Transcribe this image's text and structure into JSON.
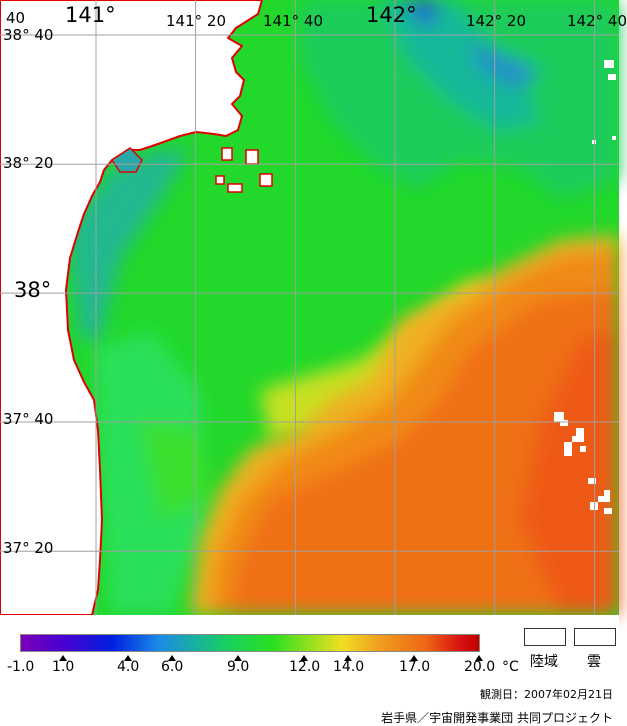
{
  "map": {
    "lat_labels": [
      {
        "text": "38° 40",
        "lat": 38.667
      },
      {
        "text": "38° 20",
        "lat": 38.333
      },
      {
        "text": "38°",
        "lat": 38.0,
        "major": true
      },
      {
        "text": "37° 40",
        "lat": 37.667
      },
      {
        "text": "37° 20",
        "lat": 37.333
      }
    ],
    "lon_labels": [
      {
        "text": "141°",
        "lon": 141.0,
        "major": true
      },
      {
        "text": "141° 20",
        "lon": 141.333
      },
      {
        "text": "141° 40",
        "lon": 141.667
      },
      {
        "text": "142°",
        "lon": 142.0,
        "major": true
      },
      {
        "text": "142° 20",
        "lon": 142.333
      },
      {
        "text": "142° 40",
        "lon": 142.667
      }
    ],
    "corner_label": "40",
    "grid_color": "#a0a0a0",
    "coast_color": "#e00000",
    "land_color": "#ffffff"
  },
  "legend": {
    "scale_min_label": "-1.0",
    "ticks": [
      "1.0",
      "4.0",
      "6.0",
      "9.0",
      "12.0",
      "14.0",
      "17.0",
      "20.0"
    ],
    "unit": "°C",
    "land_label": "陸域",
    "cloud_label": "雲",
    "land_swatch_color": "#ffffff",
    "cloud_swatch_color": "#ffffff"
  },
  "observation_date": "観測日：2007年02月21日",
  "credit": "岩手県／宇宙開発事業団 共同プロジェクト"
}
